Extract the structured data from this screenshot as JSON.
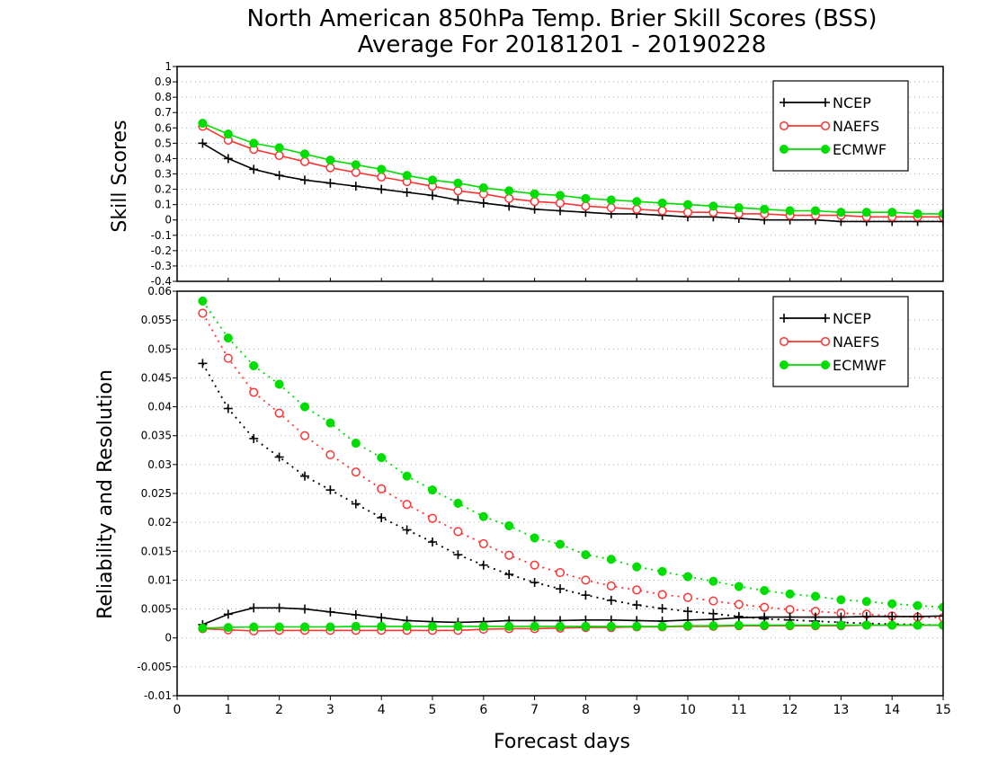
{
  "chart_data": [
    {
      "type": "line",
      "title_line1": "North American 850hPa Temp. Brier Skill Scores (BSS)",
      "title_line2": "Average For 20181201 - 20190228",
      "ylabel": "Skill Scores",
      "xlabel": "",
      "xlim": [
        0,
        15
      ],
      "ylim": [
        -0.4,
        1
      ],
      "yticks": [
        "-0.4",
        "-0.3",
        "-0.2",
        "-0.1",
        "0",
        "0.1",
        "0.2",
        "0.3",
        "0.4",
        "0.5",
        "0.6",
        "0.7",
        "0.8",
        "0.9",
        "1"
      ],
      "grid": true,
      "legend_position": "top-right",
      "x": [
        0.5,
        1,
        1.5,
        2,
        2.5,
        3,
        3.5,
        4,
        4.5,
        5,
        5.5,
        6,
        6.5,
        7,
        7.5,
        8,
        8.5,
        9,
        9.5,
        10,
        10.5,
        11,
        11.5,
        12,
        12.5,
        13,
        13.5,
        14,
        14.5,
        15
      ],
      "series": [
        {
          "name": "NCEP",
          "color": "#000000",
          "marker": "plus",
          "style": "solid",
          "values": [
            0.5,
            0.4,
            0.33,
            0.29,
            0.26,
            0.24,
            0.22,
            0.2,
            0.18,
            0.16,
            0.13,
            0.11,
            0.09,
            0.07,
            0.06,
            0.05,
            0.04,
            0.04,
            0.03,
            0.02,
            0.02,
            0.01,
            0.0,
            0.0,
            0.0,
            -0.01,
            -0.01,
            -0.01,
            -0.01,
            -0.01
          ]
        },
        {
          "name": "NAEFS",
          "color": "#ff3333",
          "marker": "open-circle",
          "style": "solid",
          "values": [
            0.61,
            0.52,
            0.46,
            0.42,
            0.38,
            0.34,
            0.31,
            0.28,
            0.25,
            0.22,
            0.19,
            0.17,
            0.14,
            0.12,
            0.11,
            0.09,
            0.08,
            0.07,
            0.06,
            0.05,
            0.05,
            0.04,
            0.04,
            0.03,
            0.03,
            0.03,
            0.02,
            0.02,
            0.02,
            0.02
          ]
        },
        {
          "name": "ECMWF",
          "color": "#00dd00",
          "marker": "filled-circle",
          "style": "solid",
          "values": [
            0.63,
            0.56,
            0.5,
            0.47,
            0.43,
            0.39,
            0.36,
            0.33,
            0.29,
            0.26,
            0.24,
            0.21,
            0.19,
            0.17,
            0.16,
            0.14,
            0.13,
            0.12,
            0.11,
            0.1,
            0.09,
            0.08,
            0.07,
            0.06,
            0.06,
            0.05,
            0.05,
            0.05,
            0.04,
            0.04
          ]
        }
      ]
    },
    {
      "type": "line",
      "ylabel": "Reliability and Resolution",
      "xlabel": "Forecast days",
      "xlim": [
        0,
        15
      ],
      "ylim": [
        -0.01,
        0.06
      ],
      "xticks": [
        "0",
        "1",
        "2",
        "3",
        "4",
        "5",
        "6",
        "7",
        "8",
        "9",
        "10",
        "11",
        "12",
        "13",
        "14",
        "15"
      ],
      "yticks": [
        "-0.01",
        "-0.005",
        "0",
        "0.005",
        "0.01",
        "0.015",
        "0.02",
        "0.025",
        "0.03",
        "0.035",
        "0.04",
        "0.045",
        "0.05",
        "0.055",
        "0.06"
      ],
      "grid": true,
      "legend_position": "top-right",
      "x": [
        0.5,
        1,
        1.5,
        2,
        2.5,
        3,
        3.5,
        4,
        4.5,
        5,
        5.5,
        6,
        6.5,
        7,
        7.5,
        8,
        8.5,
        9,
        9.5,
        10,
        10.5,
        11,
        11.5,
        12,
        12.5,
        13,
        13.5,
        14,
        14.5,
        15
      ],
      "series": [
        {
          "name": "NCEP",
          "color": "#000000",
          "marker": "plus",
          "style": "dotted",
          "component": "resolution",
          "values": [
            0.0475,
            0.0397,
            0.0345,
            0.0313,
            0.028,
            0.0256,
            0.0232,
            0.0208,
            0.0187,
            0.0166,
            0.0144,
            0.0126,
            0.011,
            0.0096,
            0.0085,
            0.0074,
            0.0065,
            0.0057,
            0.0051,
            0.0046,
            0.0042,
            0.0037,
            0.0033,
            0.0031,
            0.0029,
            0.0027,
            0.0025,
            0.0024,
            0.0023,
            0.0022
          ]
        },
        {
          "name": "NAEFS",
          "color": "#ff3333",
          "marker": "open-circle",
          "style": "dotted",
          "component": "resolution",
          "values": [
            0.0562,
            0.0484,
            0.0425,
            0.0389,
            0.035,
            0.0317,
            0.0287,
            0.0258,
            0.0231,
            0.0207,
            0.0184,
            0.0163,
            0.0143,
            0.0126,
            0.0113,
            0.01,
            0.009,
            0.0083,
            0.0075,
            0.007,
            0.0064,
            0.0058,
            0.0053,
            0.0049,
            0.0046,
            0.0043,
            0.0041,
            0.0038,
            0.0036,
            0.0035
          ]
        },
        {
          "name": "ECMWF",
          "color": "#00dd00",
          "marker": "filled-circle",
          "style": "dotted",
          "component": "resolution",
          "values": [
            0.0583,
            0.0519,
            0.0471,
            0.0439,
            0.04,
            0.0372,
            0.0337,
            0.0312,
            0.028,
            0.0256,
            0.0233,
            0.021,
            0.0194,
            0.0173,
            0.0162,
            0.0144,
            0.0136,
            0.0123,
            0.0115,
            0.0106,
            0.0098,
            0.0089,
            0.0082,
            0.0076,
            0.0072,
            0.0066,
            0.0063,
            0.0059,
            0.0056,
            0.0053
          ]
        },
        {
          "name": "NCEP",
          "color": "#000000",
          "marker": "plus",
          "style": "solid",
          "component": "reliability",
          "values": [
            0.0023,
            0.0041,
            0.0052,
            0.0052,
            0.005,
            0.0045,
            0.004,
            0.0035,
            0.003,
            0.0028,
            0.0027,
            0.0028,
            0.003,
            0.003,
            0.003,
            0.0031,
            0.0031,
            0.003,
            0.0029,
            0.0031,
            0.0032,
            0.0035,
            0.0036,
            0.0036,
            0.0036,
            0.0036,
            0.0037,
            0.0037,
            0.0037,
            0.0038
          ]
        },
        {
          "name": "NAEFS",
          "color": "#ff3333",
          "marker": "open-circle",
          "style": "solid",
          "component": "reliability",
          "values": [
            0.0016,
            0.0014,
            0.0012,
            0.0013,
            0.0013,
            0.0013,
            0.0013,
            0.0013,
            0.0013,
            0.0013,
            0.0013,
            0.0015,
            0.0016,
            0.0016,
            0.0017,
            0.0018,
            0.0018,
            0.0019,
            0.0019,
            0.002,
            0.002,
            0.0021,
            0.0021,
            0.0021,
            0.0021,
            0.0021,
            0.0022,
            0.0022,
            0.0022,
            0.0022
          ]
        },
        {
          "name": "ECMWF",
          "color": "#00dd00",
          "marker": "filled-circle",
          "style": "solid",
          "component": "reliability",
          "values": [
            0.0017,
            0.0018,
            0.0019,
            0.0019,
            0.0019,
            0.0019,
            0.002,
            0.002,
            0.002,
            0.002,
            0.002,
            0.002,
            0.002,
            0.002,
            0.002,
            0.002,
            0.002,
            0.002,
            0.002,
            0.0021,
            0.0021,
            0.0022,
            0.0022,
            0.0022,
            0.0022,
            0.0022,
            0.0022,
            0.0022,
            0.0022,
            0.0022
          ]
        }
      ]
    }
  ]
}
